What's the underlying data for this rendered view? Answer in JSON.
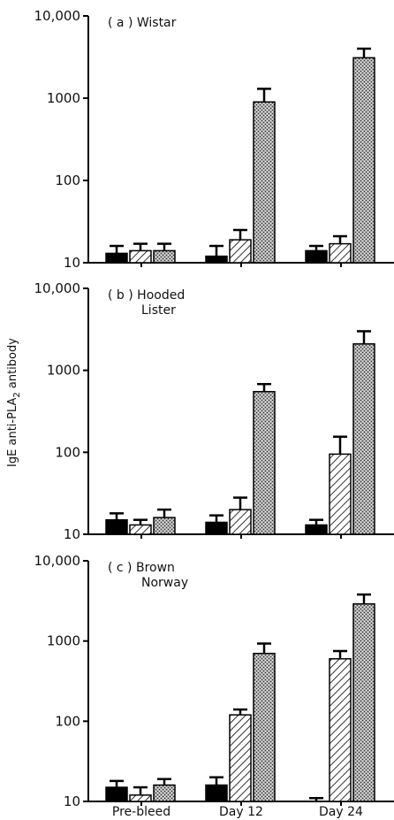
{
  "chart_data": {
    "type": "bar",
    "ylabel": "IgE anti-PLA2 antibody",
    "ylabel_parts": [
      "IgE anti-PLA",
      "2",
      " antibody"
    ],
    "yscale": "log",
    "ylim": [
      10,
      10000
    ],
    "yticks": [
      10,
      100,
      1000,
      10000
    ],
    "ytick_labels": [
      "10",
      "100",
      "1000",
      "10,000"
    ],
    "categories": [
      "Pre-bleed",
      "Day 12",
      "Day 24"
    ],
    "series_styles": [
      {
        "fill": "solid-black"
      },
      {
        "fill": "diagonal-hatch"
      },
      {
        "fill": "stipple-gray"
      }
    ],
    "panels": [
      {
        "title_lines": [
          "( a )  Wistar"
        ],
        "bars": [
          [
            {
              "value": 13,
              "err": 3
            },
            {
              "value": 14,
              "err": 3
            },
            {
              "value": 14,
              "err": 3
            }
          ],
          [
            {
              "value": 12,
              "err": 4
            },
            {
              "value": 19,
              "err": 6
            },
            {
              "value": 900,
              "err": 400
            }
          ],
          [
            {
              "value": 14,
              "err": 2
            },
            {
              "value": 17,
              "err": 4
            },
            {
              "value": 3100,
              "err": 900
            }
          ]
        ]
      },
      {
        "title_lines": [
          "( b )  Hooded",
          "Lister"
        ],
        "bars": [
          [
            {
              "value": 15,
              "err": 3
            },
            {
              "value": 13,
              "err": 2
            },
            {
              "value": 16,
              "err": 4
            }
          ],
          [
            {
              "value": 14,
              "err": 3
            },
            {
              "value": 20,
              "err": 8
            },
            {
              "value": 550,
              "err": 130
            }
          ],
          [
            {
              "value": 13,
              "err": 2
            },
            {
              "value": 95,
              "err": 60
            },
            {
              "value": 2100,
              "err": 900
            }
          ]
        ]
      },
      {
        "title_lines": [
          "( c )  Brown",
          "Norway"
        ],
        "bars": [
          [
            {
              "value": 15,
              "err": 3
            },
            {
              "value": 12,
              "err": 3
            },
            {
              "value": 16,
              "err": 3
            }
          ],
          [
            {
              "value": 16,
              "err": 4
            },
            {
              "value": 120,
              "err": 20
            },
            {
              "value": 700,
              "err": 230
            }
          ],
          [
            {
              "value": 10,
              "err": 1
            },
            {
              "value": 600,
              "err": 150
            },
            {
              "value": 2900,
              "err": 900
            }
          ]
        ]
      }
    ]
  }
}
